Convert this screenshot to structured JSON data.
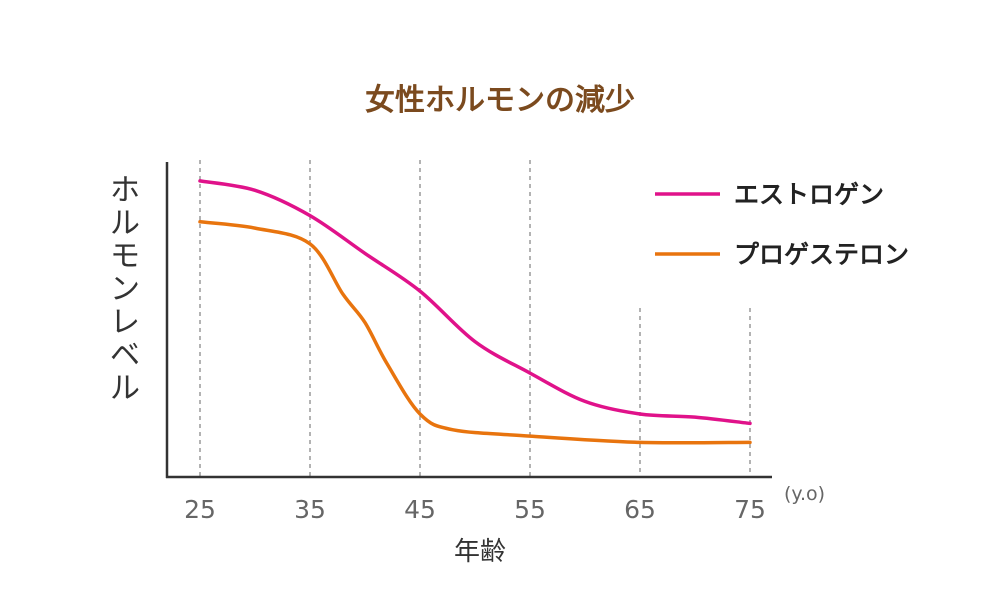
{
  "colors": {
    "title": "#7b4a1e",
    "axis": "#333333",
    "grid": "#9a9a9a",
    "tick_text": "#666666"
  },
  "chart_data": {
    "type": "line",
    "title": "女性ホルモンの減少",
    "xlabel": "年齢",
    "ylabel": "ホルモンレベル",
    "x_unit": "(y.o)",
    "x_ticks": [
      25,
      35,
      45,
      55,
      65,
      75
    ],
    "xlim": [
      22,
      77
    ],
    "ylim": [
      0,
      100
    ],
    "grid": "vertical dashed lines at x ticks",
    "legend_position": "top-right",
    "y_ticks_shown": false,
    "series": [
      {
        "name": "エストロゲン",
        "color": "#e0128a",
        "x": [
          25,
          30,
          35,
          40,
          45,
          50,
          55,
          60,
          65,
          70,
          75
        ],
        "y": [
          94,
          91,
          83,
          71,
          59,
          43,
          33,
          24,
          20,
          19,
          17
        ]
      },
      {
        "name": "プロゲステロン",
        "color": "#e8740e",
        "x": [
          25,
          30,
          35,
          38,
          40,
          42,
          45,
          48,
          55,
          65,
          75
        ],
        "y": [
          81,
          79,
          74,
          58,
          49,
          36,
          20,
          15,
          13,
          11,
          11
        ]
      }
    ]
  }
}
